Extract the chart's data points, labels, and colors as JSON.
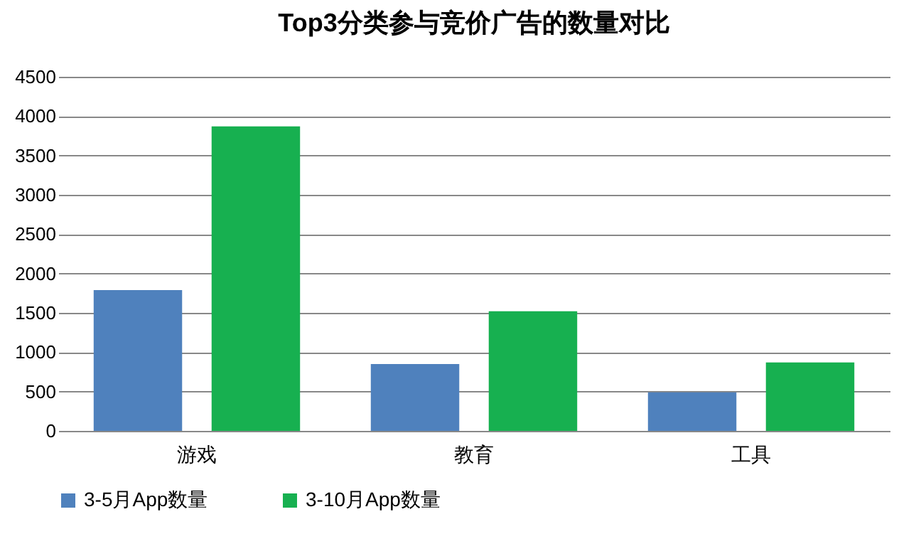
{
  "chart_data": {
    "type": "bar",
    "title": "Top3分类参与竞价广告的数量对比",
    "categories": [
      "游戏",
      "教育",
      "工具"
    ],
    "series": [
      {
        "name": "3-5月App数量",
        "color": "#4f81bd",
        "values": [
          1790,
          850,
          490
        ]
      },
      {
        "name": "3-10月App数量",
        "color": "#17b050",
        "values": [
          3870,
          1520,
          870
        ]
      }
    ],
    "ylim": [
      0,
      4500
    ],
    "yticks": [
      0,
      500,
      1000,
      1500,
      2000,
      2500,
      3000,
      3500,
      4000,
      4500
    ],
    "grid": "y",
    "legend": "bottom"
  }
}
